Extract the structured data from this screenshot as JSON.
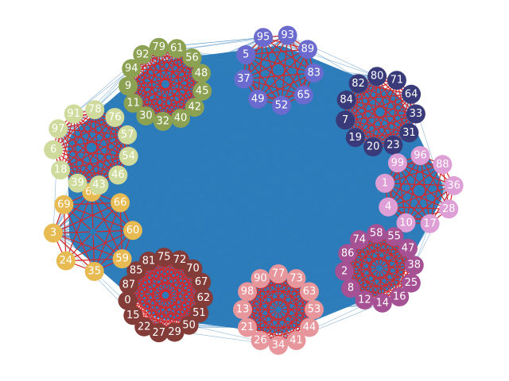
{
  "colors": {
    "background": "#ffffff",
    "inter_edge": "#2b7bba",
    "intra_edge": "#d62728",
    "hub_fill": "#2b7bba"
  },
  "clusters": [
    {
      "name": "top-center",
      "color": "#6b6bcf",
      "nodes": [
        "93",
        "89",
        "83",
        "65",
        "52",
        "49",
        "37",
        "5",
        "95"
      ]
    },
    {
      "name": "top-right",
      "color": "#393a79",
      "nodes": [
        "80",
        "71",
        "64",
        "33",
        "31",
        "23",
        "20",
        "19",
        "7",
        "84",
        "82"
      ]
    },
    {
      "name": "right",
      "color": "#de9ed6",
      "nodes": [
        "96",
        "88",
        "36",
        "28",
        "17",
        "10",
        "4",
        "1",
        "99"
      ]
    },
    {
      "name": "bottom-right",
      "color": "#a55194",
      "nodes": [
        "58",
        "55",
        "47",
        "38",
        "25",
        "16",
        "14",
        "12",
        "8",
        "2",
        "86",
        "74"
      ]
    },
    {
      "name": "bottom-center",
      "color": "#e7969c",
      "nodes": [
        "77",
        "73",
        "63",
        "53",
        "44",
        "41",
        "34",
        "26",
        "21",
        "13",
        "98",
        "90"
      ]
    },
    {
      "name": "bottom-left",
      "color": "#843c39",
      "nodes": [
        "75",
        "72",
        "70",
        "67",
        "62",
        "51",
        "50",
        "29",
        "27",
        "22",
        "15",
        "0",
        "87",
        "85",
        "81"
      ]
    },
    {
      "name": "left-lower",
      "color": "#e7ba52",
      "nodes": [
        "68",
        "66",
        "60",
        "59",
        "35",
        "24",
        "3",
        "69"
      ]
    },
    {
      "name": "left-upper",
      "color": "#cedb9c",
      "nodes": [
        "78",
        "76",
        "57",
        "54",
        "46",
        "43",
        "39",
        "18",
        "6",
        "97",
        "91"
      ]
    },
    {
      "name": "top-left",
      "color": "#8ca252",
      "nodes": [
        "79",
        "61",
        "56",
        "48",
        "45",
        "42",
        "40",
        "32",
        "30",
        "11",
        "9",
        "94",
        "92"
      ]
    }
  ]
}
